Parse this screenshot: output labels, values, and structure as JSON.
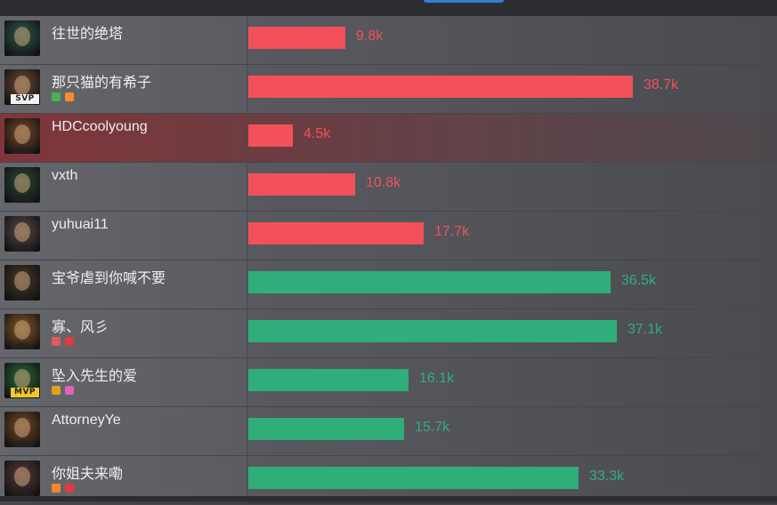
{
  "colors": {
    "team_red": "#f2515c",
    "team_green": "#2fae7a",
    "highlight_row": "#7a2a30"
  },
  "chart_data": {
    "type": "bar",
    "orientation": "horizontal",
    "categories": [
      "往世的绝塔",
      "那只猫的有希子",
      "HDCcoolyoung",
      "vxth",
      "yuhuai11",
      "宝爷虐到你喊不要",
      "寡、风彡",
      "坠入先生的爱",
      "AttorneyYe",
      "你姐夫来嘞"
    ],
    "values": [
      9.8,
      38.7,
      4.5,
      10.8,
      17.7,
      36.5,
      37.1,
      16.1,
      15.7,
      33.3
    ],
    "value_labels": [
      "9.8k",
      "38.7k",
      "4.5k",
      "10.8k",
      "17.7k",
      "36.5k",
      "37.1k",
      "16.1k",
      "15.7k",
      "33.3k"
    ],
    "unit": "k",
    "xlim": [
      0,
      40
    ],
    "grid": false
  },
  "players": [
    {
      "name": "往世的绝塔",
      "team": "red",
      "badge": "",
      "tags": [],
      "highlight": false,
      "avatar_icon": "champion-portrait-icon",
      "avatar_color": "#2c5a4a"
    },
    {
      "name": "那只猫的有希子",
      "team": "red",
      "badge": "SVP",
      "tags": [
        {
          "icon": "shield-tag-icon",
          "color": "#4caf50"
        },
        {
          "icon": "fire-tag-icon",
          "color": "#ff8a2a"
        }
      ],
      "highlight": false,
      "avatar_icon": "champion-portrait-icon",
      "avatar_color": "#6a4a3a"
    },
    {
      "name": "HDCcoolyoung",
      "team": "red",
      "badge": "",
      "tags": [],
      "highlight": true,
      "avatar_icon": "champion-portrait-icon",
      "avatar_color": "#7a4a2a"
    },
    {
      "name": "vxth",
      "team": "red",
      "badge": "",
      "tags": [],
      "highlight": false,
      "avatar_icon": "champion-portrait-icon",
      "avatar_color": "#2a4a3a"
    },
    {
      "name": "yuhuai11",
      "team": "red",
      "badge": "",
      "tags": [],
      "highlight": false,
      "avatar_icon": "champion-portrait-icon",
      "avatar_color": "#5a4a4a"
    },
    {
      "name": "宝爷虐到你喊不要",
      "team": "green",
      "badge": "",
      "tags": [],
      "highlight": false,
      "avatar_icon": "champion-portrait-icon",
      "avatar_color": "#4a3a2a"
    },
    {
      "name": "寡、风彡",
      "team": "green",
      "badge": "",
      "tags": [
        {
          "icon": "chain-tag-icon",
          "color": "#e05a5a"
        },
        {
          "icon": "red-tag-icon",
          "color": "#e03a3a"
        }
      ],
      "highlight": false,
      "avatar_icon": "champion-portrait-icon",
      "avatar_color": "#8a5a2a"
    },
    {
      "name": "坠入先生的爱",
      "team": "green",
      "badge": "MVP",
      "tags": [
        {
          "icon": "gold-tag-icon",
          "color": "#e0a020"
        },
        {
          "icon": "pink-tag-icon",
          "color": "#e060c0"
        }
      ],
      "highlight": false,
      "avatar_icon": "champion-portrait-icon",
      "avatar_color": "#2a6a3a"
    },
    {
      "name": "AttorneyYe",
      "team": "green",
      "badge": "",
      "tags": [],
      "highlight": false,
      "avatar_icon": "champion-portrait-icon",
      "avatar_color": "#7a4a2a"
    },
    {
      "name": "你姐夫来嘞",
      "team": "green",
      "badge": "",
      "tags": [
        {
          "icon": "orange-tag-icon",
          "color": "#f08a2a"
        },
        {
          "icon": "red-tag-icon",
          "color": "#e03a3a"
        }
      ],
      "highlight": false,
      "avatar_icon": "champion-portrait-icon",
      "avatar_color": "#5a3a3a"
    }
  ]
}
